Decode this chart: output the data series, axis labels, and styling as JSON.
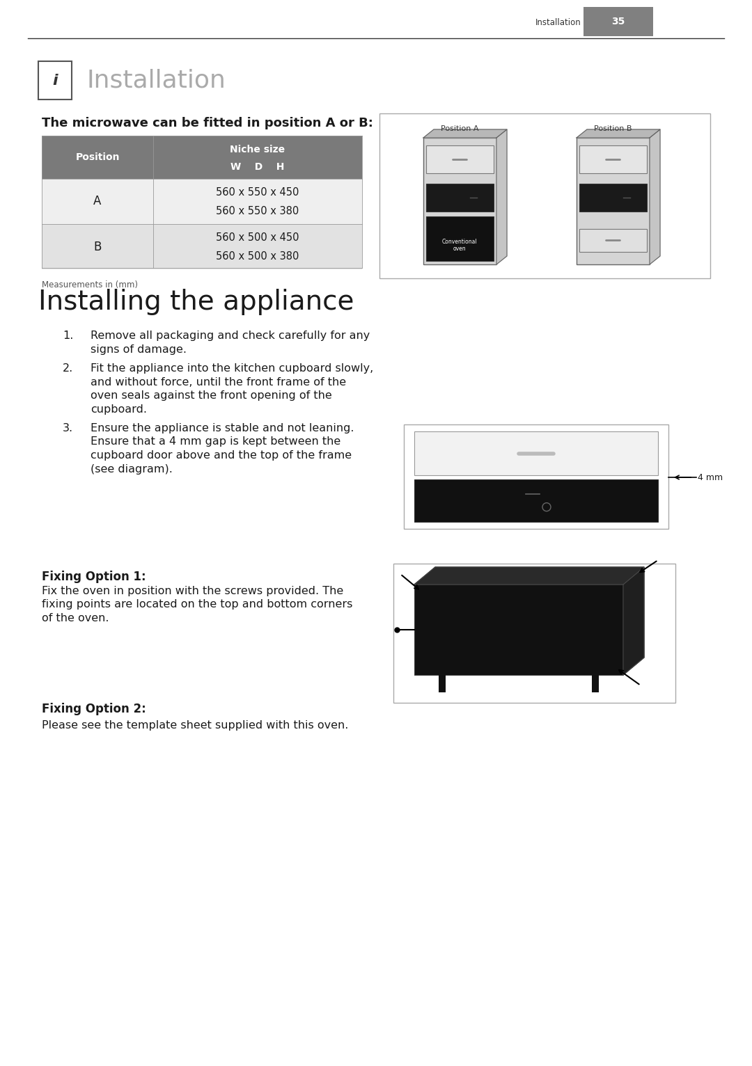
{
  "bg_color": "#ffffff",
  "page_width": 10.8,
  "page_height": 15.32,
  "header_text": "Installation",
  "header_page": "35",
  "section1_title": "Installation",
  "subtitle": "The microwave can be fitted in position A or B:",
  "table_col1_header": "Position",
  "table_col2_header": "Niche size",
  "table_col2_subheader": "W    D    H",
  "table_data": [
    {
      "pos": "A",
      "size1": "560 x 550 x 450",
      "size2": "560 x 550 x 380"
    },
    {
      "pos": "B",
      "size1": "560 x 500 x 450",
      "size2": "560 x 500 x 380"
    }
  ],
  "table_footnote": "Measurements in (mm)",
  "section2_title": "Installing the appliance",
  "steps": [
    [
      "Remove all packaging and check carefully for any",
      "signs of damage."
    ],
    [
      "Fit the appliance into the kitchen cupboard slowly,",
      "and without force, until the front frame of the",
      "oven seals against the front opening of the",
      "cupboard."
    ],
    [
      "Ensure the appliance is stable and not leaning.",
      "Ensure that a 4 mm gap is kept between the",
      "cupboard door above and the top of the frame",
      "(see diagram)."
    ]
  ],
  "fixing1_title": "Fixing Option 1:",
  "fixing1_text": [
    "Fix the oven in position with the screws provided. The",
    "fixing points are located on the top and bottom corners",
    "of the oven."
  ],
  "fixing2_title": "Fixing Option 2:",
  "fixing2_text": "Please see the template sheet supplied with this oven.",
  "header_gray": "#808080",
  "table_header_color": "#7a7a7a",
  "row_a_color": "#efefef",
  "row_b_color": "#e2e2e2",
  "text_dark": "#1a1a1a",
  "text_gray": "#555555"
}
